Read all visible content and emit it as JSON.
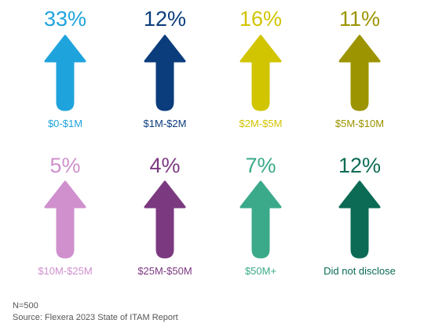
{
  "chart_data": {
    "type": "bar",
    "categories": [
      "$0-$1M",
      "$1M-$2M",
      "$2M-$5M",
      "$5M-$10M",
      "$10M-$25M",
      "$25M-$50M",
      "$50M+",
      "Did not disclose"
    ],
    "values": [
      33,
      12,
      16,
      11,
      5,
      4,
      7,
      12
    ],
    "value_labels": [
      "33%",
      "12%",
      "16%",
      "11%",
      "5%",
      "4%",
      "7%",
      "12%"
    ],
    "unit": "%",
    "colors": [
      "#1fa3dc",
      "#0b3c7c",
      "#d1c400",
      "#9c9400",
      "#cf90cd",
      "#7b3980",
      "#3aaa8a",
      "#0b6b54"
    ],
    "legend": "none",
    "grid": false
  },
  "footnotes": {
    "sample": "N=500",
    "source": "Source: Flexera 2023 State of ITAM Report"
  }
}
